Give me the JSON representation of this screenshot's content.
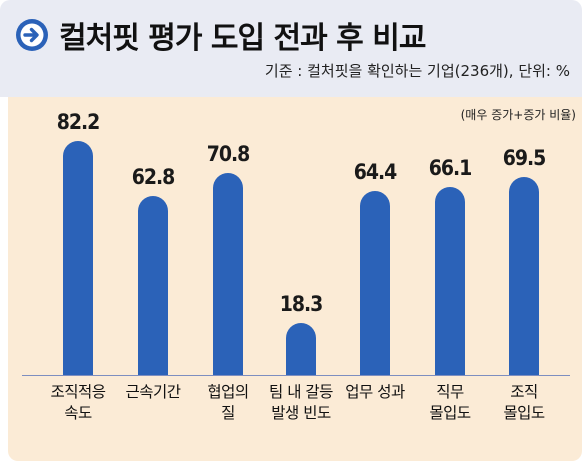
{
  "header": {
    "title": "컬처핏 평가 도입 전과 후 비교",
    "subtitle": "기준 : 컬처핏을 확인하는 기업(236개), 단위: %",
    "icon": "arrow-right-circle-icon"
  },
  "note": "(매우 증가+증가 비율)",
  "colors": {
    "bar": "#2b62b8",
    "panel": "#fbebd6",
    "header": "#e9ebf3",
    "icon": "#2b62b8"
  },
  "chart_data": {
    "type": "bar",
    "title": "컬처핏 평가 도입 전과 후 비교",
    "subtitle": "기준 : 컬처핏을 확인하는 기업(236개), 단위: %",
    "annotation": "(매우 증가+증가 비율)",
    "categories": [
      [
        "조직적응",
        "속도"
      ],
      [
        "근속기간"
      ],
      [
        "협업의",
        "질"
      ],
      [
        "팀 내 갈등",
        "발생 빈도"
      ],
      [
        "업무 성과"
      ],
      [
        "직무",
        "몰입도"
      ],
      [
        "조직",
        "몰입도"
      ]
    ],
    "values": [
      "82.2",
      "62.8",
      "70.8",
      "18.3",
      "64.4",
      "66.1",
      "69.5"
    ],
    "ylim": [
      0,
      100
    ],
    "grid": false,
    "legend": "none"
  }
}
